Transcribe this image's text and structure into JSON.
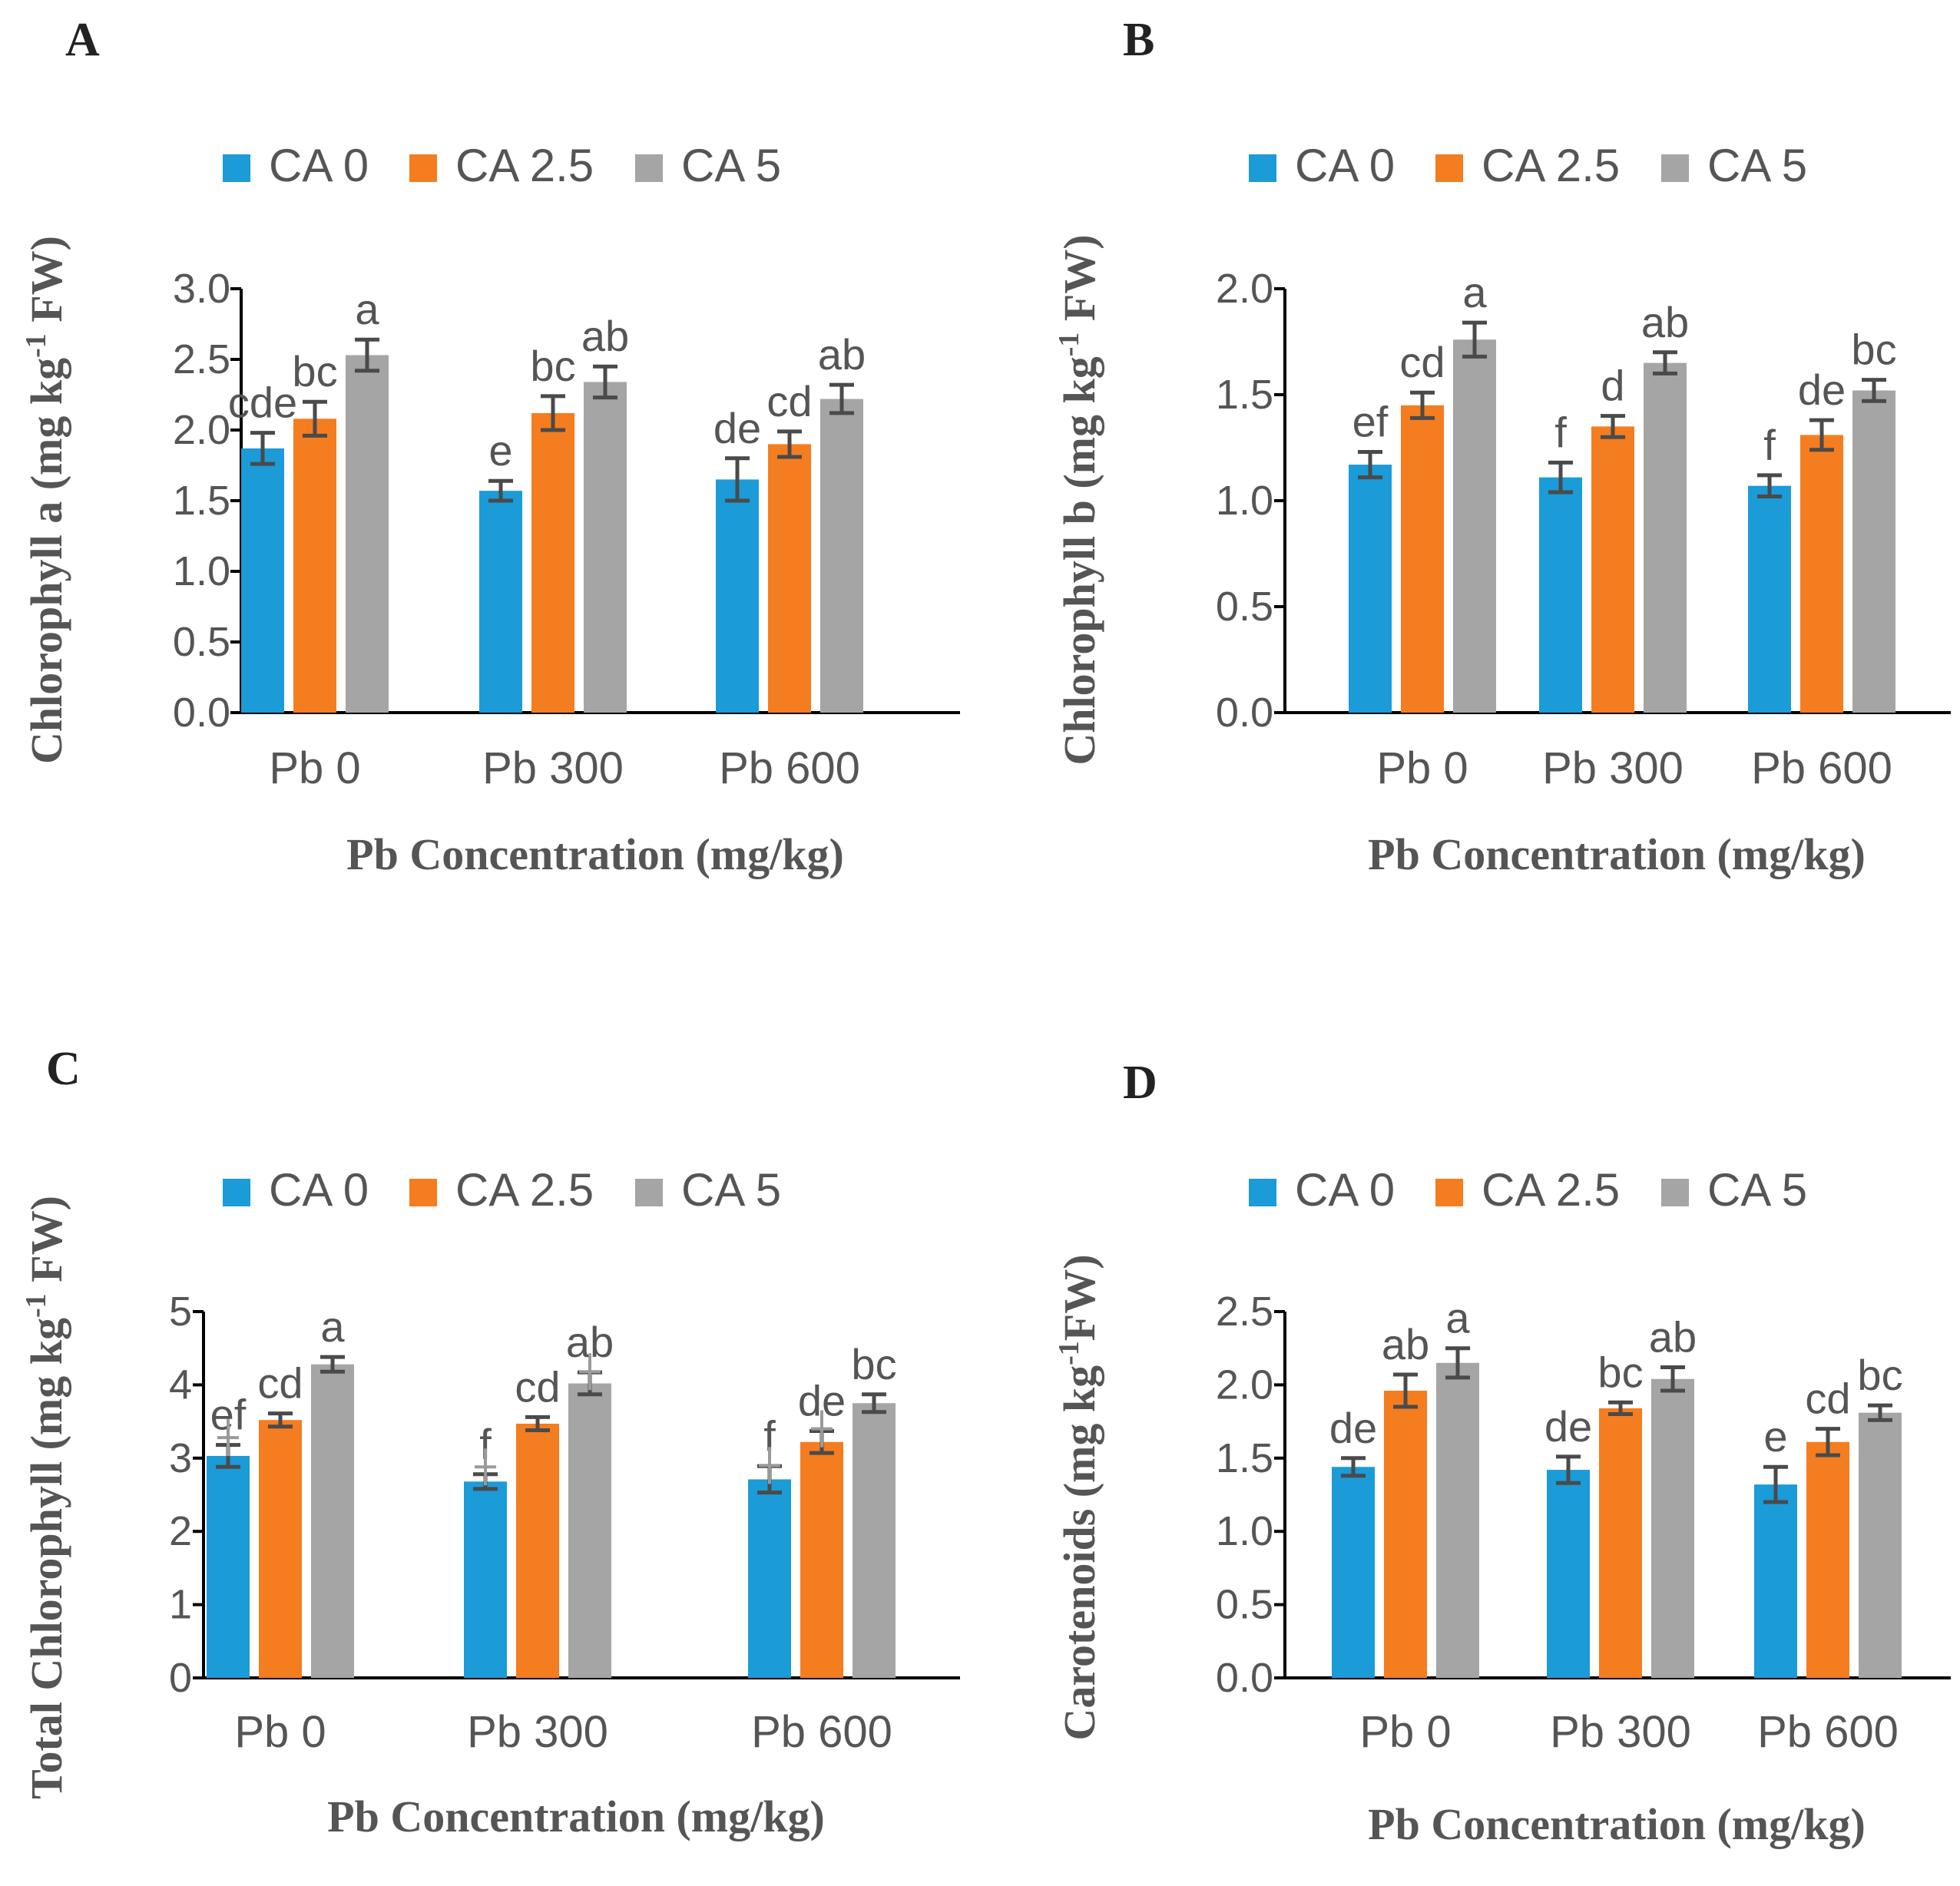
{
  "chart_data": [
    {
      "type": "bar",
      "panel": "A",
      "title": "",
      "legend": [
        "CA 0",
        "CA 2.5",
        "CA 5"
      ],
      "legend_position": "top",
      "categories": [
        "Pb 0",
        "Pb 300",
        "Pb 600"
      ],
      "xlabel": "Pb Concentration (mg/kg)",
      "ylabel": "Chlorophyll a (mg kg-1 FW)",
      "ylabel_main": "Chlorophyll a (mg kg",
      "ylabel_sup": "-1",
      "ylabel_end": " FW)",
      "ylim": [
        0,
        3
      ],
      "yticks": [
        "0.0",
        "0.5",
        "1.0",
        "1.5",
        "2.0",
        "2.5",
        "3.0"
      ],
      "ytick_values": [
        0,
        0.5,
        1,
        1.5,
        2,
        2.5,
        3
      ],
      "series": [
        {
          "name": "CA 0",
          "values": [
            1.87,
            1.57,
            1.65
          ],
          "errors": [
            0.11,
            0.07,
            0.15
          ],
          "letters": [
            "cde",
            "e",
            "de"
          ]
        },
        {
          "name": "CA 2.5",
          "values": [
            2.08,
            2.12,
            1.9
          ],
          "errors": [
            0.12,
            0.12,
            0.09
          ],
          "letters": [
            "bc",
            "bc",
            "cd"
          ]
        },
        {
          "name": "CA 5",
          "values": [
            2.53,
            2.34,
            2.22
          ],
          "errors": [
            0.11,
            0.11,
            0.1
          ],
          "letters": [
            "a",
            "ab",
            "ab"
          ]
        }
      ],
      "faint_marks": []
    },
    {
      "type": "bar",
      "panel": "B",
      "title": "",
      "legend": [
        "CA 0",
        "CA 2.5",
        "CA 5"
      ],
      "legend_position": "top",
      "categories": [
        "Pb 0",
        "Pb 300",
        "Pb 600"
      ],
      "xlabel": "Pb Concentration (mg/kg)",
      "ylabel": "Chlorophyll b (mg kg-1 FW)",
      "ylabel_main": "Chlorophyll b (mg kg",
      "ylabel_sup": "-1",
      "ylabel_end": " FW)",
      "ylim": [
        0,
        2
      ],
      "yticks": [
        "0.0",
        "0.5",
        "1.0",
        "1.5",
        "2.0"
      ],
      "ytick_values": [
        0,
        0.5,
        1,
        1.5,
        2
      ],
      "series": [
        {
          "name": "CA 0",
          "values": [
            1.17,
            1.11,
            1.07
          ],
          "errors": [
            0.06,
            0.07,
            0.05
          ],
          "letters": [
            "ef",
            "f",
            "f"
          ]
        },
        {
          "name": "CA 2.5",
          "values": [
            1.45,
            1.35,
            1.31
          ],
          "errors": [
            0.06,
            0.05,
            0.07
          ],
          "letters": [
            "cd",
            "d",
            "de"
          ]
        },
        {
          "name": "CA 5",
          "values": [
            1.76,
            1.65,
            1.52
          ],
          "errors": [
            0.08,
            0.05,
            0.05
          ],
          "letters": [
            "a",
            "ab",
            "bc"
          ]
        }
      ],
      "faint_marks": []
    },
    {
      "type": "bar",
      "panel": "C",
      "title": "",
      "legend": [
        "CA 0",
        "CA 2.5",
        "CA 5"
      ],
      "legend_position": "top",
      "categories": [
        "Pb 0",
        "Pb 300",
        "Pb 600"
      ],
      "xlabel": "Pb Concentration (mg/kg)",
      "ylabel": "Total Chlorophyll (mg kg-1 FW)",
      "ylabel_main": "Total Chlorophyll  (mg kg",
      "ylabel_sup": "-1",
      "ylabel_end": " FW)",
      "ylim": [
        0,
        5
      ],
      "yticks": [
        "0",
        "1",
        "2",
        "3",
        "4",
        "5"
      ],
      "ytick_values": [
        0,
        1,
        2,
        3,
        4,
        5
      ],
      "series": [
        {
          "name": "CA 0",
          "values": [
            3.03,
            2.68,
            2.71
          ],
          "errors": [
            0.15,
            0.1,
            0.18
          ],
          "letters": [
            "ef",
            "f",
            "f"
          ]
        },
        {
          "name": "CA 2.5",
          "values": [
            3.52,
            3.47,
            3.22
          ],
          "errors": [
            0.09,
            0.09,
            0.15
          ],
          "letters": [
            "cd",
            "cd",
            "de"
          ]
        },
        {
          "name": "CA 5",
          "values": [
            4.28,
            4.02,
            3.75
          ],
          "errors": [
            0.1,
            0.15,
            0.12
          ],
          "letters": [
            "a",
            "ab",
            "bc"
          ]
        }
      ],
      "faint_marks": [
        {
          "group": 0,
          "series": 0,
          "value": 3.28
        },
        {
          "group": 1,
          "series": 0,
          "value": 2.88
        },
        {
          "group": 2,
          "series": 0,
          "value": 2.9
        },
        {
          "group": 2,
          "series": 1,
          "value": 3.4
        },
        {
          "group": 1,
          "series": 2,
          "value": 4.18
        }
      ]
    },
    {
      "type": "bar",
      "panel": "D",
      "title": "",
      "legend": [
        "CA 0",
        "CA 2.5",
        "CA 5"
      ],
      "legend_position": "top",
      "categories": [
        "Pb 0",
        "Pb 300",
        "Pb 600"
      ],
      "xlabel": "Pb Concentration (mg/kg)",
      "ylabel": "Carotenoids (mg kg-1 FW)",
      "ylabel_main": "Carotenoids (mg kg",
      "ylabel_sup": "-1",
      "ylabel_end": "FW)",
      "ylim": [
        0,
        2.5
      ],
      "yticks": [
        "0.0",
        "0.5",
        "1.0",
        "1.5",
        "2.0",
        "2.5"
      ],
      "ytick_values": [
        0,
        0.5,
        1,
        1.5,
        2,
        2.5
      ],
      "series": [
        {
          "name": "CA 0",
          "values": [
            1.44,
            1.42,
            1.32
          ],
          "errors": [
            0.06,
            0.09,
            0.12
          ],
          "letters": [
            "de",
            "de",
            "e"
          ]
        },
        {
          "name": "CA 2.5",
          "values": [
            1.96,
            1.84,
            1.61
          ],
          "errors": [
            0.11,
            0.04,
            0.09
          ],
          "letters": [
            "ab",
            "bc",
            "cd"
          ]
        },
        {
          "name": "CA 5",
          "values": [
            2.15,
            2.04,
            1.81
          ],
          "errors": [
            0.1,
            0.08,
            0.05
          ],
          "letters": [
            "a",
            "ab",
            "bc"
          ]
        }
      ],
      "faint_marks": []
    }
  ],
  "colors": {
    "series": [
      "#1b9bd7",
      "#f47d20",
      "#a5a5a5"
    ],
    "axis": "#000000",
    "error_bar": "#4a4a4a",
    "text": "#555555",
    "panel_letter": "#222222"
  }
}
